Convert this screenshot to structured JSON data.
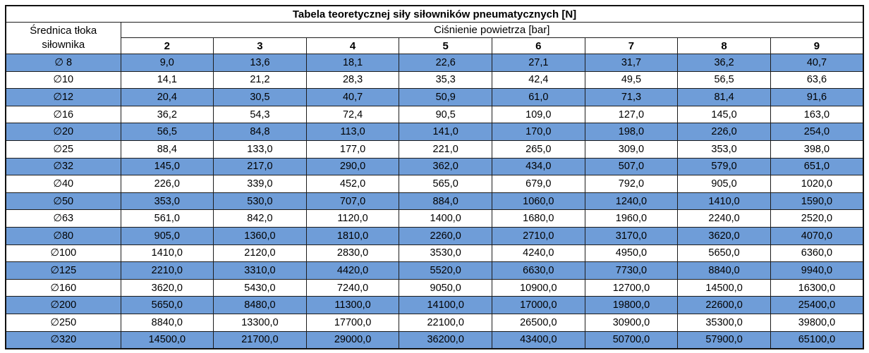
{
  "table": {
    "title": "Tabela teoretycznej siły siłowników pneumatycznych [N]",
    "row_header": "Średnica tłoka siłownika",
    "col_group_header": "Ciśnienie powietrza [bar]",
    "pressures": [
      "2",
      "3",
      "4",
      "5",
      "6",
      "7",
      "8",
      "9"
    ],
    "rows": [
      {
        "d": "∅ 8",
        "values": [
          "9,0",
          "13,6",
          "18,1",
          "22,6",
          "27,1",
          "31,7",
          "36,2",
          "40,7"
        ]
      },
      {
        "d": "∅10",
        "values": [
          "14,1",
          "21,2",
          "28,3",
          "35,3",
          "42,4",
          "49,5",
          "56,5",
          "63,6"
        ]
      },
      {
        "d": "∅12",
        "values": [
          "20,4",
          "30,5",
          "40,7",
          "50,9",
          "61,0",
          "71,3",
          "81,4",
          "91,6"
        ]
      },
      {
        "d": "∅16",
        "values": [
          "36,2",
          "54,3",
          "72,4",
          "90,5",
          "109,0",
          "127,0",
          "145,0",
          "163,0"
        ]
      },
      {
        "d": "∅20",
        "values": [
          "56,5",
          "84,8",
          "113,0",
          "141,0",
          "170,0",
          "198,0",
          "226,0",
          "254,0"
        ]
      },
      {
        "d": "∅25",
        "values": [
          "88,4",
          "133,0",
          "177,0",
          "221,0",
          "265,0",
          "309,0",
          "353,0",
          "398,0"
        ]
      },
      {
        "d": "∅32",
        "values": [
          "145,0",
          "217,0",
          "290,0",
          "362,0",
          "434,0",
          "507,0",
          "579,0",
          "651,0"
        ]
      },
      {
        "d": "∅40",
        "values": [
          "226,0",
          "339,0",
          "452,0",
          "565,0",
          "679,0",
          "792,0",
          "905,0",
          "1020,0"
        ]
      },
      {
        "d": "∅50",
        "values": [
          "353,0",
          "530,0",
          "707,0",
          "884,0",
          "1060,0",
          "1240,0",
          "1410,0",
          "1590,0"
        ]
      },
      {
        "d": "∅63",
        "values": [
          "561,0",
          "842,0",
          "1120,0",
          "1400,0",
          "1680,0",
          "1960,0",
          "2240,0",
          "2520,0"
        ]
      },
      {
        "d": "∅80",
        "values": [
          "905,0",
          "1360,0",
          "1810,0",
          "2260,0",
          "2710,0",
          "3170,0",
          "3620,0",
          "4070,0"
        ]
      },
      {
        "d": "∅100",
        "values": [
          "1410,0",
          "2120,0",
          "2830,0",
          "3530,0",
          "4240,0",
          "4950,0",
          "5650,0",
          "6360,0"
        ]
      },
      {
        "d": "∅125",
        "values": [
          "2210,0",
          "3310,0",
          "4420,0",
          "5520,0",
          "6630,0",
          "7730,0",
          "8840,0",
          "9940,0"
        ]
      },
      {
        "d": "∅160",
        "values": [
          "3620,0",
          "5430,0",
          "7240,0",
          "9050,0",
          "10900,0",
          "12700,0",
          "14500,0",
          "16300,0"
        ]
      },
      {
        "d": "∅200",
        "values": [
          "5650,0",
          "8480,0",
          "11300,0",
          "14100,0",
          "17000,0",
          "19800,0",
          "22600,0",
          "25400,0"
        ]
      },
      {
        "d": "∅250",
        "values": [
          "8840,0",
          "13300,0",
          "17700,0",
          "22100,0",
          "26500,0",
          "30900,0",
          "35300,0",
          "39800,0"
        ]
      },
      {
        "d": "∅320",
        "values": [
          "14500,0",
          "21700,0",
          "29000,0",
          "36200,0",
          "43400,0",
          "50700,0",
          "57900,0",
          "65100,0"
        ]
      }
    ]
  },
  "colors": {
    "row_highlight": "#6f9dd8",
    "border": "#1c1c1c",
    "text": "#000000"
  }
}
